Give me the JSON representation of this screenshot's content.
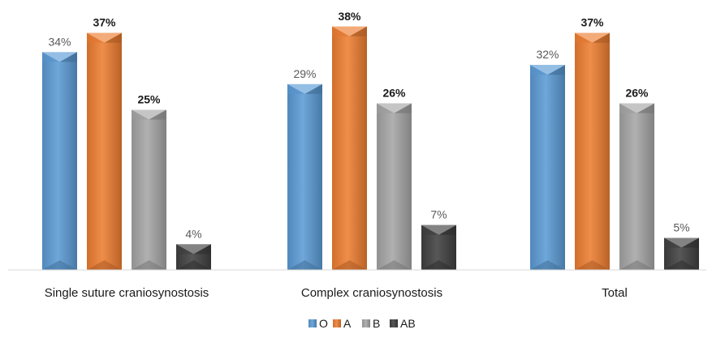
{
  "chart_data": {
    "type": "bar",
    "categories": [
      "Single suture craniosynostosis",
      "Complex craniosynostosis",
      "Total"
    ],
    "series": [
      {
        "name": "O",
        "values": [
          34,
          29,
          32
        ],
        "labels": [
          "34%",
          "29%",
          "32%"
        ],
        "color": "#5B9BD5",
        "label_color": "#595959",
        "label_bold": false
      },
      {
        "name": "A",
        "values": [
          37,
          38,
          37
        ],
        "labels": [
          "37%",
          "38%",
          "37%"
        ],
        "color": "#ED7D31",
        "label_color": "#1a1a1a",
        "label_bold": true
      },
      {
        "name": "B",
        "values": [
          25,
          26,
          26
        ],
        "labels": [
          "25%",
          "26%",
          "26%"
        ],
        "color": "#A5A5A5",
        "label_color": "#1a1a1a",
        "label_bold": true
      },
      {
        "name": "AB",
        "values": [
          4,
          7,
          5
        ],
        "labels": [
          "4%",
          "7%",
          "5%"
        ],
        "color": "#404040",
        "label_color": "#595959",
        "label_bold": false
      }
    ],
    "ylim": [
      0,
      40
    ],
    "grid": false,
    "legend_position": "bottom"
  }
}
